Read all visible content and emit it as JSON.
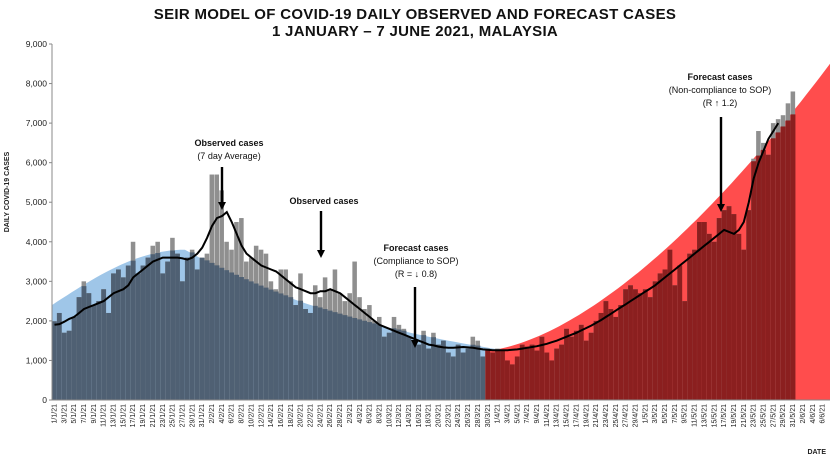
{
  "chart_data": {
    "type": "bar",
    "title": "SEIR MODEL OF COVID-19 DAILY OBSERVED AND FORECAST CASES",
    "subtitle": "1 JANUARY  – 7 JUNE 2021, MALAYSIA",
    "xlabel": "DATE",
    "ylabel": "DAILY COVID-19 CASES",
    "ylim": [
      0,
      9000
    ],
    "yticks": [
      "0",
      "1,000",
      "2,000",
      "3,000",
      "4,000",
      "5,000",
      "6,000",
      "7,000",
      "8,000",
      "9,000"
    ],
    "xlim": [
      "2021-01-01",
      "2021-06-07"
    ],
    "x_tick_labels": [
      "1/1/21",
      "3/1/21",
      "5/1/21",
      "7/1/21",
      "9/1/21",
      "11/1/21",
      "13/1/21",
      "15/1/21",
      "17/1/21",
      "19/1/21",
      "21/1/21",
      "23/1/21",
      "25/1/21",
      "27/1/21",
      "29/1/21",
      "31/1/21",
      "2/2/21",
      "4/2/21",
      "6/2/21",
      "8/2/21",
      "10/2/21",
      "12/2/21",
      "14/2/21",
      "16/2/21",
      "18/2/21",
      "20/2/21",
      "22/2/21",
      "24/2/21",
      "26/2/21",
      "28/2/21",
      "2/3/21",
      "4/3/21",
      "6/3/21",
      "8/3/21",
      "10/3/21",
      "12/3/21",
      "14/3/21",
      "16/3/21",
      "18/3/21",
      "20/3/21",
      "22/3/21",
      "24/3/21",
      "26/3/21",
      "28/3/21",
      "30/3/21",
      "1/4/21",
      "3/4/21",
      "5/4/21",
      "7/4/21",
      "9/4/21",
      "11/4/21",
      "13/4/21",
      "15/4/21",
      "17/4/21",
      "19/4/21",
      "21/4/21",
      "23/4/21",
      "25/4/21",
      "27/4/21",
      "29/4/21",
      "1/5/21",
      "3/5/21",
      "5/5/21",
      "7/5/21",
      "9/5/21",
      "11/5/21",
      "13/5/21",
      "15/5/21",
      "17/5/21",
      "19/5/21",
      "21/5/21",
      "23/5/21",
      "25/5/21",
      "27/5/21",
      "29/5/21",
      "31/5/21",
      "2/6/21",
      "4/6/21",
      "6/6/21"
    ],
    "daily_observed": [
      1990,
      2200,
      1700,
      1750,
      2100,
      2600,
      3000,
      2700,
      2400,
      2500,
      2800,
      2200,
      3200,
      3300,
      3100,
      3400,
      4000,
      3200,
      3400,
      3600,
      3900,
      4000,
      3200,
      3500,
      4100,
      3700,
      3000,
      3600,
      3800,
      3300,
      3600,
      3700,
      5700,
      5700,
      5300,
      4000,
      3800,
      4500,
      4600,
      3500,
      3600,
      3900,
      3800,
      3700,
      3000,
      2800,
      3300,
      3300,
      3000,
      2400,
      3200,
      2300,
      2200,
      2900,
      2600,
      3100,
      2800,
      3300,
      2700,
      2500,
      2700,
      3500,
      2600,
      2300,
      2400,
      2000,
      2100,
      1600,
      1700,
      2100,
      1900,
      1800,
      1600,
      1500,
      1400,
      1750,
      1300,
      1700,
      1400,
      1500,
      1200,
      1100,
      1400,
      1200,
      1300,
      1600,
      1500,
      1100,
      1300,
      1200,
      1300,
      1250,
      1000,
      900,
      1100,
      1400,
      1350,
      1400,
      1250,
      1600,
      1200,
      1000,
      1300,
      1400,
      1800,
      1600,
      1750,
      1900,
      1500,
      1700,
      2000,
      2200,
      2500,
      2300,
      2100,
      2400,
      2800,
      2900,
      2800,
      2700,
      2800,
      2600,
      3000,
      3200,
      3300,
      3800,
      2900,
      3400,
      2500,
      3700,
      3800,
      4500,
      4500,
      4200,
      4000,
      4600,
      4800,
      4900,
      4700,
      4200,
      3800,
      4800,
      6100,
      6800,
      6500,
      6200,
      7000,
      7100,
      7200,
      7500,
      7800
    ],
    "seven_day_average": [
      1900,
      1920,
      1980,
      2050,
      2100,
      2200,
      2300,
      2350,
      2400,
      2450,
      2500,
      2600,
      2700,
      2750,
      2800,
      2900,
      3100,
      3200,
      3300,
      3400,
      3500,
      3550,
      3600,
      3600,
      3600,
      3600,
      3580,
      3550,
      3600,
      3700,
      3850,
      4100,
      4400,
      4600,
      4650,
      4750,
      4500,
      4200,
      3900,
      3700,
      3600,
      3500,
      3400,
      3350,
      3300,
      3250,
      3150,
      3050,
      2950,
      2850,
      2800,
      2750,
      2700,
      2700,
      2750,
      2750,
      2800,
      2750,
      2700,
      2600,
      2500,
      2400,
      2300,
      2200,
      2100,
      2000,
      1900,
      1850,
      1800,
      1750,
      1700,
      1650,
      1600,
      1550,
      1500,
      1450,
      1400,
      1380,
      1350,
      1330,
      1320,
      1320,
      1330,
      1340,
      1330,
      1320,
      1300,
      1280,
      1270,
      1260,
      1260,
      1260,
      1260,
      1270,
      1280,
      1300,
      1320,
      1340,
      1360,
      1390,
      1420,
      1460,
      1500,
      1550,
      1600,
      1650,
      1700,
      1760,
      1820,
      1880,
      1950,
      2020,
      2100,
      2180,
      2260,
      2340,
      2420,
      2500,
      2580,
      2660,
      2740,
      2820,
      2900,
      3000,
      3100,
      3200,
      3300,
      3400,
      3500,
      3600,
      3700,
      3800,
      3900,
      4000,
      4100,
      4200,
      4300,
      4250,
      4200,
      4300,
      4500,
      5000,
      5600,
      6000,
      6300,
      6600,
      6800,
      7000
    ],
    "series": [
      {
        "name": "Observed cases",
        "values": "daily_observed"
      },
      {
        "name": "Forecast cases (Compliance to SOP)",
        "R": "↓ 0.8",
        "start": 3800,
        "peak_day": 27,
        "end": 300
      },
      {
        "name": "Forecast cases (Non-compliance to SOP)",
        "R": "↑ 1.2",
        "start_day": 88,
        "start": 1250,
        "end": 8500
      }
    ],
    "annotations": [
      {
        "text": [
          "Observed cases",
          "(7 day Average)"
        ]
      },
      {
        "text": [
          "Observed cases"
        ]
      },
      {
        "text": [
          "Forecast cases",
          "(Compliance to SOP)",
          "(R = ↓ 0.8)"
        ]
      },
      {
        "text": [
          "Forecast cases",
          "(Non-compliance to SOP)",
          "(R ↑ 1.2)"
        ]
      }
    ],
    "colors": {
      "observed_bars": "#8f8f8f",
      "seven_day_line": "#000000",
      "forecast_compliance": "#9fc6e8",
      "forecast_noncompliance": "#ff4d4d",
      "overlap_blue": "#4f6073",
      "overlap_red": "#8b1f1f"
    },
    "grid": false,
    "legend": "none"
  }
}
